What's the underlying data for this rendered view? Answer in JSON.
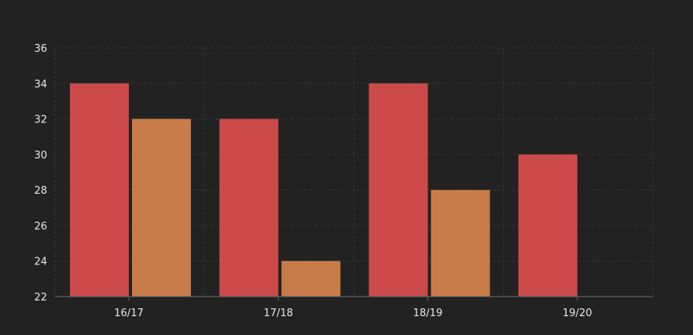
{
  "chart_data": {
    "type": "bar",
    "categories": [
      "16/17",
      "17/18",
      "18/19",
      "19/20"
    ],
    "series": [
      {
        "values": [
          34,
          32,
          34,
          30
        ],
        "color": "#cc4a4a"
      },
      {
        "values": [
          32,
          24,
          28,
          22
        ],
        "color": "#c87c4a"
      }
    ],
    "ylim": [
      22,
      36
    ],
    "yticks": [
      "22",
      "24",
      "26",
      "28",
      "30",
      "32",
      "34",
      "36"
    ],
    "grid": true,
    "background": "#222222",
    "grid_color": "#3a3a3a",
    "axis_color": "#6a6a6a",
    "text_color": "#e8e8e8"
  }
}
